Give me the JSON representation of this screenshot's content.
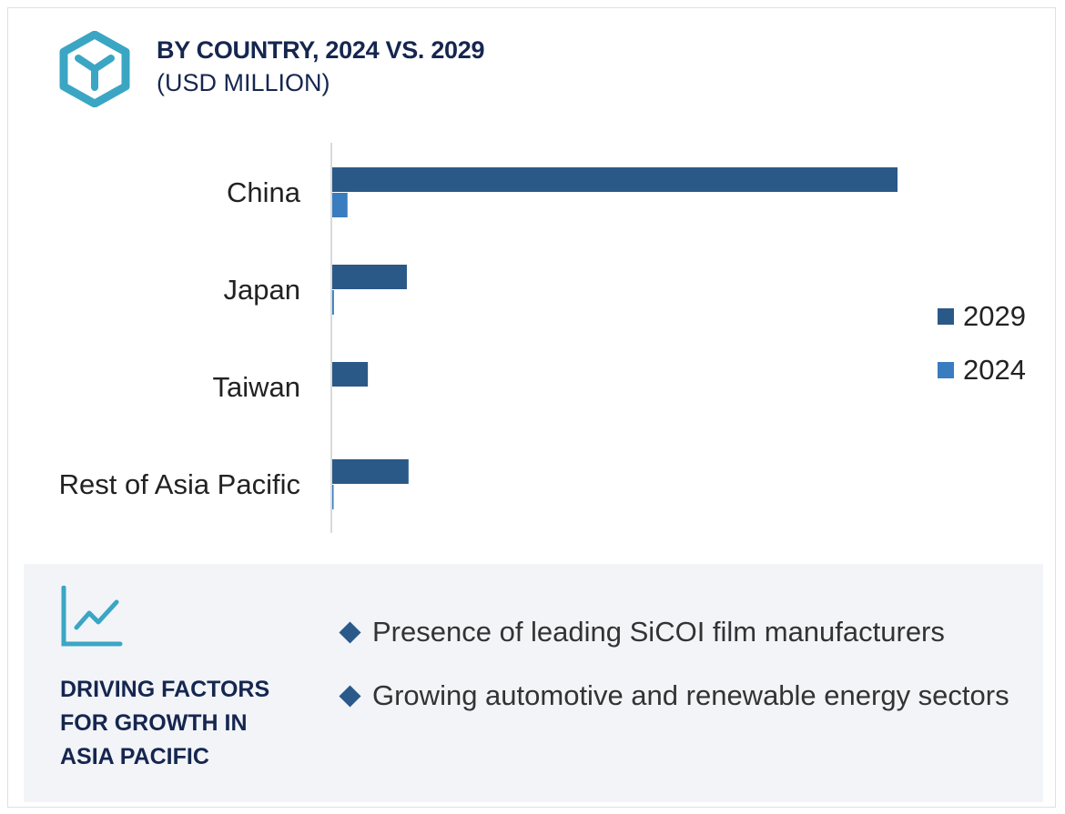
{
  "header": {
    "title": "BY COUNTRY, 2024 VS. 2029",
    "subtitle": "(USD MILLION)"
  },
  "chart_data": {
    "type": "bar",
    "orientation": "horizontal",
    "title": "BY COUNTRY, 2024 VS. 2029",
    "subtitle": "(USD MILLION)",
    "categories": [
      "China",
      "Japan",
      "Taiwan",
      "Rest of Asia Pacific"
    ],
    "series": [
      {
        "name": "2029",
        "color": "#2b5987",
        "values": [
          100,
          13.2,
          6.3,
          13.5
        ]
      },
      {
        "name": "2024",
        "color": "#3a7cc0",
        "values": [
          2.7,
          0.3,
          0,
          0.2
        ]
      }
    ],
    "value_note": "relative scale, no axis values shown (China 2029 = 100)",
    "xlim": [
      0,
      100
    ],
    "grid": false,
    "legend_placement": "right"
  },
  "legend": [
    {
      "label": "2029",
      "color": "#2b5987"
    },
    {
      "label": "2024",
      "color": "#3a7cc0"
    }
  ],
  "panel": {
    "title": "DRIVING FACTORS FOR GROWTH IN ASIA PACIFIC",
    "bullets": [
      "Presence of leading SiCOI film manufacturers",
      "Growing automotive and renewable energy sectors"
    ]
  }
}
